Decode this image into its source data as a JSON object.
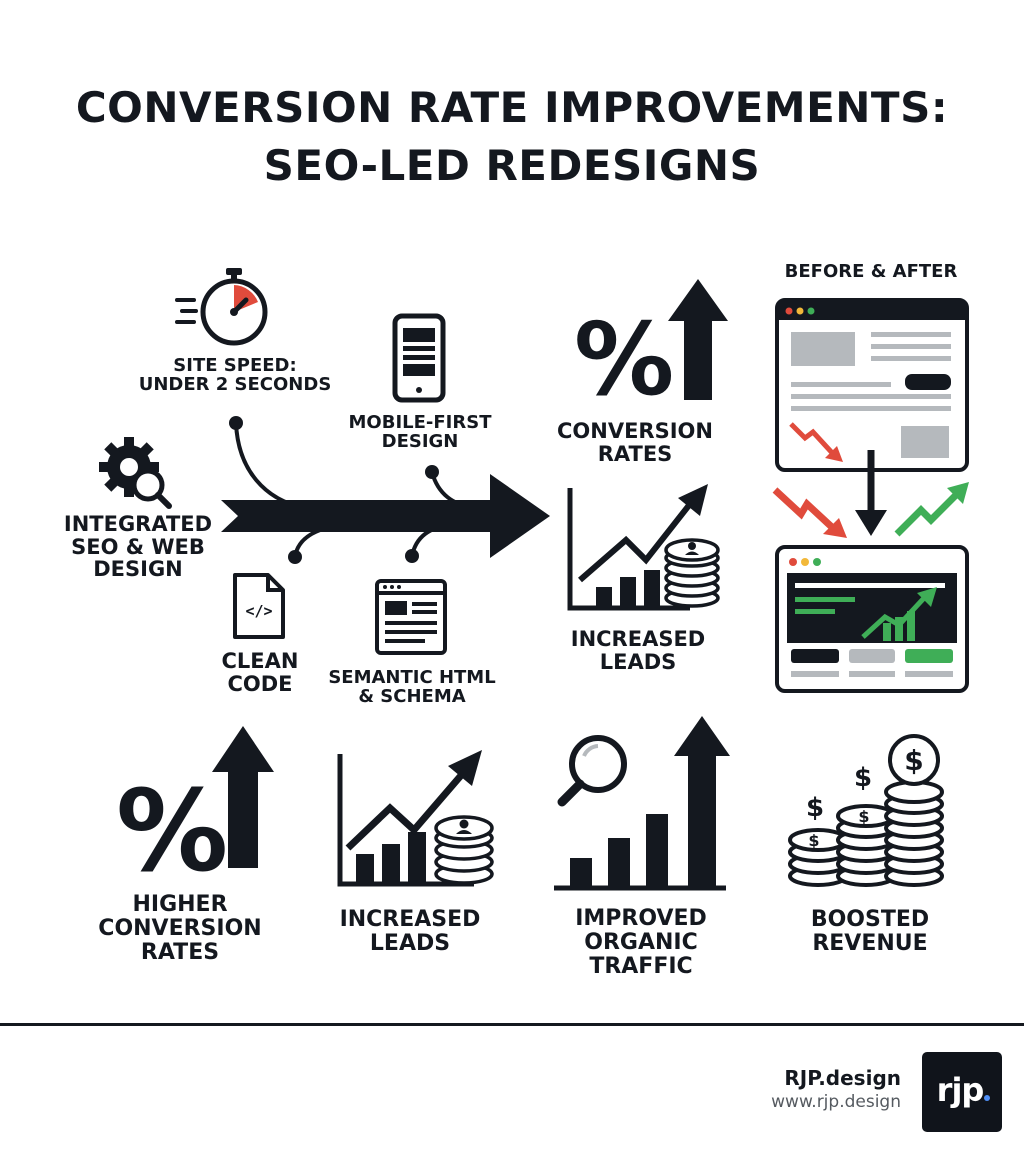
{
  "title": {
    "line1": "CONVERSION RATE IMPROVEMENTS:",
    "line2": "SEO-LED REDESIGNS"
  },
  "diagram": {
    "site_speed": {
      "line1": "SITE SPEED:",
      "line2": "UNDER 2 SECONDS",
      "icon": "stopwatch-icon"
    },
    "mobile_first": {
      "line1": "MOBILE-FIRST",
      "line2": "DESIGN",
      "icon": "smartphone-icon"
    },
    "integrated": {
      "line1": "INTEGRATED",
      "line2": "SEO & WEB",
      "line3": "DESIGN",
      "icon": "gear-search-icon"
    },
    "clean_code": {
      "line1": "CLEAN",
      "line2": "CODE",
      "icon": "code-file-icon"
    },
    "semantic_html": {
      "line1": "SEMANTIC HTML",
      "line2": "& SCHEMA",
      "icon": "webpage-icon"
    },
    "conversion_rates": {
      "line1": "CONVERSION",
      "line2": "RATES",
      "icon": "percent-up-icon"
    },
    "increased_leads": {
      "line1": "INCREASED",
      "line2": "LEADS",
      "icon": "growth-chart-icon"
    },
    "before_after": {
      "label": "BEFORE & AFTER",
      "icon": "browser-window-icon"
    }
  },
  "benefits": [
    {
      "line1": "HIGHER",
      "line2": "CONVERSION",
      "line3": "RATES",
      "icon": "percent-up-icon"
    },
    {
      "line1": "INCREASED",
      "line2": "LEADS",
      "icon": "growth-chart-icon"
    },
    {
      "line1": "IMPROVED",
      "line2": "ORGANIC",
      "line3": "TRAFFIC",
      "icon": "magnifier-bars-icon"
    },
    {
      "line1": "BOOSTED",
      "line2": "REVENUE",
      "icon": "coin-stacks-icon"
    }
  ],
  "footer": {
    "brand": "RJP.design",
    "url": "www.rjp.design",
    "logo_text": "rjp"
  },
  "colors": {
    "ink": "#14181f",
    "red": "#e04b3c",
    "green": "#3fae57",
    "gray": "#b5b9bd"
  }
}
